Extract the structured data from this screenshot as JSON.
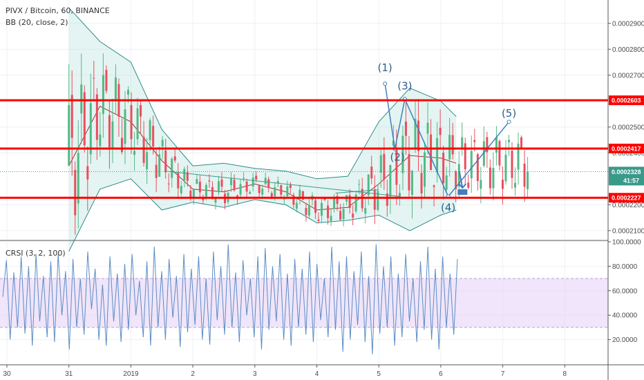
{
  "header": {
    "title": "PIVX / Bitcoin, 60, BINANCE",
    "indicator_bb": "BB (20, close, 2)",
    "indicator_crsi": "CRSI (3, 2, 100)"
  },
  "countdown": "41:57",
  "colors": {
    "up": "#53b987",
    "down": "#eb4d5c",
    "level": "#ff0000",
    "bb_fill": "#b2dfdb",
    "bb_band": "#2e8b8b",
    "bb_basis": "#a0302c",
    "annot": "#3f7fbf",
    "crsi_line": "#5b8cc4",
    "crsi_band": "#e6d4f7"
  },
  "chart_data": [
    {
      "type": "candlestick",
      "ylim": [
        0.0002065,
        0.000299
      ],
      "xlim": [
        29.88,
        8.7
      ],
      "y_ticks": [
        "0.0002100",
        "0.0002200",
        "0.0002400",
        "0.0002500",
        "0.0002700",
        "0.0002800",
        "0.0002900"
      ],
      "x_ticks": [
        "30",
        "31",
        "2019",
        "2",
        "3",
        "4",
        "5",
        "6",
        "7",
        "8"
      ],
      "price_levels": [
        {
          "value": 0.0002603,
          "label": "0.0002603"
        },
        {
          "value": 0.0002417,
          "label": "0.0002417"
        },
        {
          "value": 0.0002227,
          "label": "0.0002227"
        }
      ],
      "last_price": {
        "value": 0.0002328,
        "label": "0.0002328"
      },
      "series": [
        {
          "name": "BB (20, close, 2)",
          "x": [
            0,
            0.5,
            1,
            1.5,
            2,
            2.5,
            3,
            3.5,
            4,
            4.5,
            5,
            5.5,
            6,
            6.25
          ],
          "upper": [
            0.000296,
            0.000283,
            0.000275,
            0.000249,
            0.000235,
            0.000236,
            0.000234,
            0.000233,
            0.00023,
            0.000231,
            0.000252,
            0.000265,
            0.00026,
            0.000254
          ],
          "basis": [
            0.000235,
            0.000258,
            0.000252,
            0.000237,
            0.000226,
            0.000225,
            0.000228,
            0.000225,
            0.000218,
            0.000219,
            0.000228,
            0.000239,
            0.000238,
            0.000236
          ],
          "lower": [
            0.000202,
            0.000226,
            0.00023,
            0.000218,
            0.000221,
            0.000219,
            0.000222,
            0.00022,
            0.000213,
            0.000214,
            0.000216,
            0.00021,
            0.000216,
            0.000218
          ]
        }
      ],
      "wave_labels": [
        {
          "text": "(1)",
          "x": 5.1,
          "y": 0.0002715
        },
        {
          "text": "(2)",
          "x": 5.3,
          "y": 0.000237
        },
        {
          "text": "(3)",
          "x": 5.42,
          "y": 0.0002645
        },
        {
          "text": "(4)",
          "x": 6.12,
          "y": 0.0002175
        },
        {
          "text": "(5)",
          "x": 7.1,
          "y": 0.000254
        }
      ]
    },
    {
      "type": "line",
      "ylim": [
        0,
        100
      ],
      "y_ticks": [
        "20.0000",
        "40.0000",
        "60.0000",
        "80.0000",
        "100.0000"
      ],
      "band": [
        30,
        70
      ],
      "series": [
        {
          "name": "CRSI (3, 2, 100)",
          "values": [
            55,
            85,
            20,
            75,
            30,
            88,
            25,
            80,
            15,
            90,
            35,
            72,
            22,
            84,
            18,
            90,
            40,
            76,
            12,
            86,
            30,
            70,
            24,
            92,
            45,
            78,
            20,
            65,
            15,
            88,
            35,
            74,
            18,
            82,
            28,
            90,
            40,
            68,
            22,
            84,
            15,
            96,
            30,
            76,
            20,
            86,
            38,
            72,
            14,
            90,
            26,
            78,
            32,
            88,
            20,
            70,
            16,
            92,
            36,
            80,
            24,
            98,
            30,
            75,
            18,
            85,
            40,
            70,
            22,
            88,
            12,
            95,
            28,
            80,
            35,
            90,
            20,
            74,
            15,
            86,
            30,
            78,
            24,
            92,
            18,
            82,
            36,
            70,
            22,
            96,
            28,
            84,
            10,
            88,
            20,
            76,
            32,
            92,
            18,
            72,
            8,
            98,
            25,
            80,
            30,
            88,
            15,
            74,
            22,
            90,
            35,
            70,
            18,
            84,
            28,
            96,
            20,
            78,
            12,
            88,
            30,
            74,
            24,
            86
          ]
        }
      ]
    }
  ]
}
